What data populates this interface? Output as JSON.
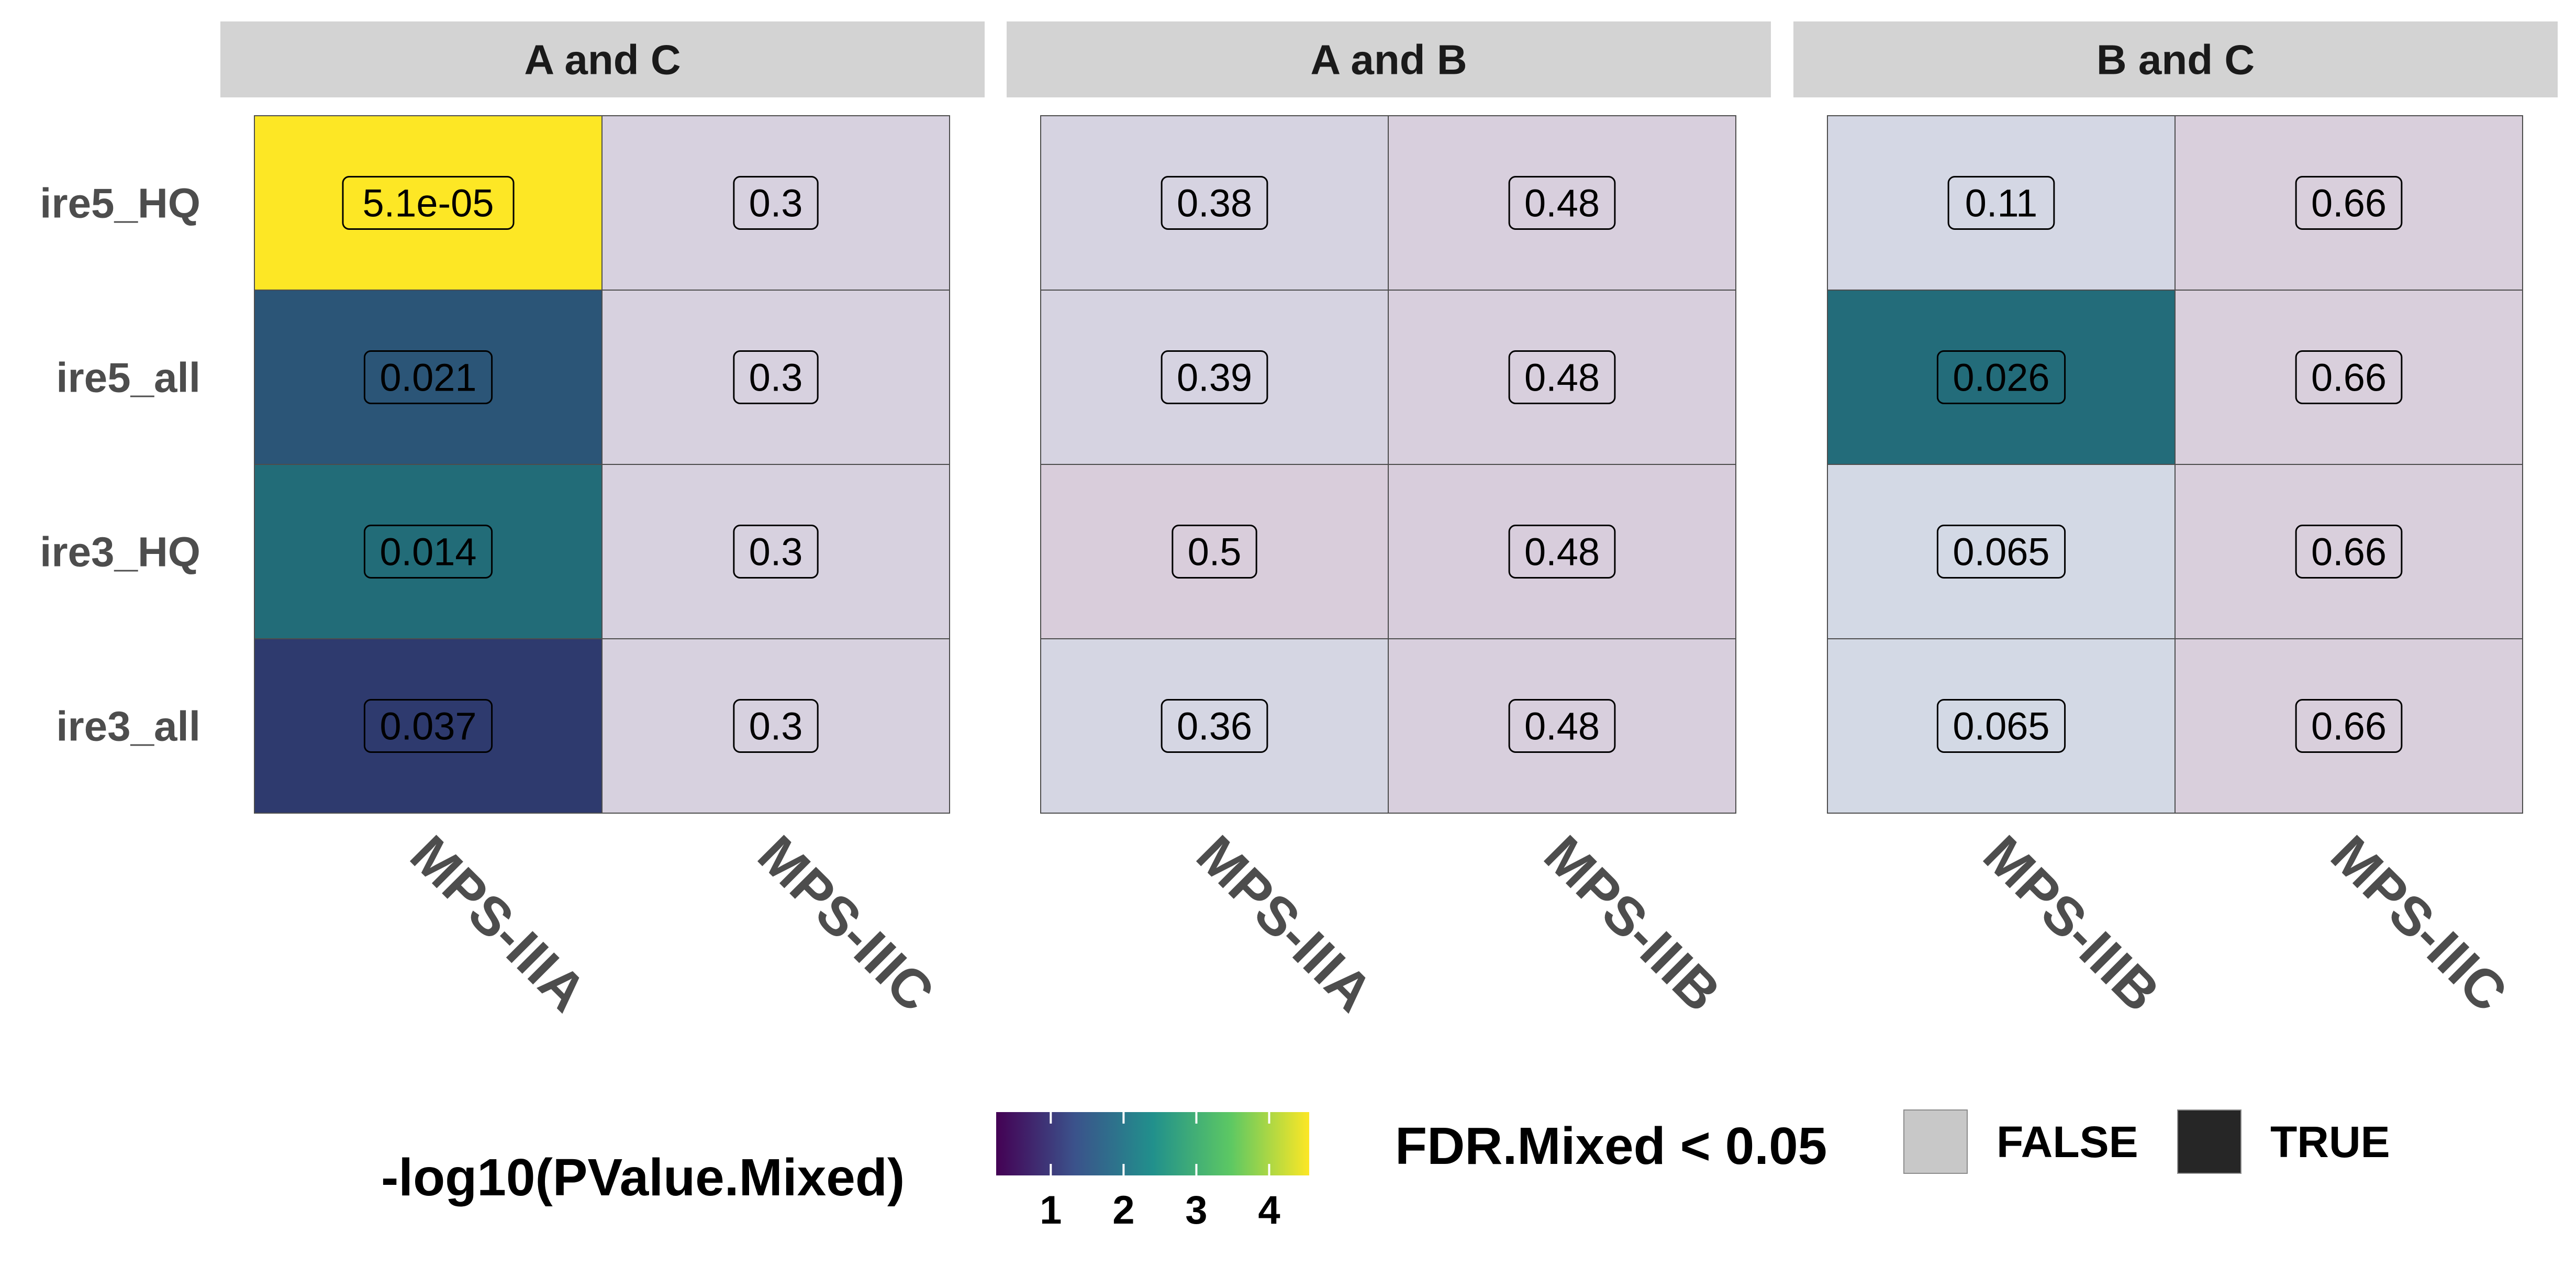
{
  "chart_data": {
    "type": "heatmap",
    "rows": [
      "ire5_HQ",
      "ire5_all",
      "ire3_HQ",
      "ire3_all"
    ],
    "facets": [
      {
        "name": "A and C",
        "columns": [
          "MPS-IIIA",
          "MPS-IIIC"
        ],
        "cells": [
          [
            {
              "label": "5.1e-05",
              "fill": "#FDE725"
            },
            {
              "label": "0.3",
              "fill": "#D7D1DF"
            }
          ],
          [
            {
              "label": "0.021",
              "fill": "#2B5577"
            },
            {
              "label": "0.3",
              "fill": "#D7D1DF"
            }
          ],
          [
            {
              "label": "0.014",
              "fill": "#226C78"
            },
            {
              "label": "0.3",
              "fill": "#D7D1DF"
            }
          ],
          [
            {
              "label": "0.037",
              "fill": "#2E3A6E"
            },
            {
              "label": "0.3",
              "fill": "#D7D1DF"
            }
          ]
        ]
      },
      {
        "name": "A and B",
        "columns": [
          "MPS-IIIA",
          "MPS-IIIB"
        ],
        "cells": [
          [
            {
              "label": "0.38",
              "fill": "#D6D3E1"
            },
            {
              "label": "0.48",
              "fill": "#D8CFDD"
            }
          ],
          [
            {
              "label": "0.39",
              "fill": "#D6D3E1"
            },
            {
              "label": "0.48",
              "fill": "#D8CFDD"
            }
          ],
          [
            {
              "label": "0.5",
              "fill": "#D9CDDB"
            },
            {
              "label": "0.48",
              "fill": "#D8CDDC"
            }
          ],
          [
            {
              "label": "0.36",
              "fill": "#D5D6E3"
            },
            {
              "label": "0.48",
              "fill": "#D8CFDD"
            }
          ]
        ]
      },
      {
        "name": "B and C",
        "columns": [
          "MPS-IIIB",
          "MPS-IIIC"
        ],
        "cells": [
          [
            {
              "label": "0.11",
              "fill": "#D4D7E4"
            },
            {
              "label": "0.66",
              "fill": "#D9CFDC"
            }
          ],
          [
            {
              "label": "0.026",
              "fill": "#236C7A"
            },
            {
              "label": "0.66",
              "fill": "#D9CFDC"
            }
          ],
          [
            {
              "label": "0.065",
              "fill": "#D3D9E5"
            },
            {
              "label": "0.66",
              "fill": "#D9CFDC"
            }
          ],
          [
            {
              "label": "0.065",
              "fill": "#D3D9E5"
            },
            {
              "label": "0.66",
              "fill": "#D9CFDC"
            }
          ]
        ]
      }
    ],
    "colorbar": {
      "title": "-log10(PValue.Mixed)",
      "ticks": [
        1,
        2,
        3,
        4
      ],
      "range": [
        0.25,
        4.55
      ],
      "colors": [
        "#440154",
        "#3B528B",
        "#21908C",
        "#5DC863",
        "#FDE725"
      ]
    },
    "fdr_legend": {
      "title": "FDR.Mixed < 0.05",
      "keys": [
        {
          "label": "FALSE",
          "color": "#C8C8C8"
        },
        {
          "label": "TRUE",
          "color": "#262626"
        }
      ]
    },
    "colors": {
      "strip_background": "#D3D3D3",
      "cell_border": "#4D4D4D"
    }
  }
}
